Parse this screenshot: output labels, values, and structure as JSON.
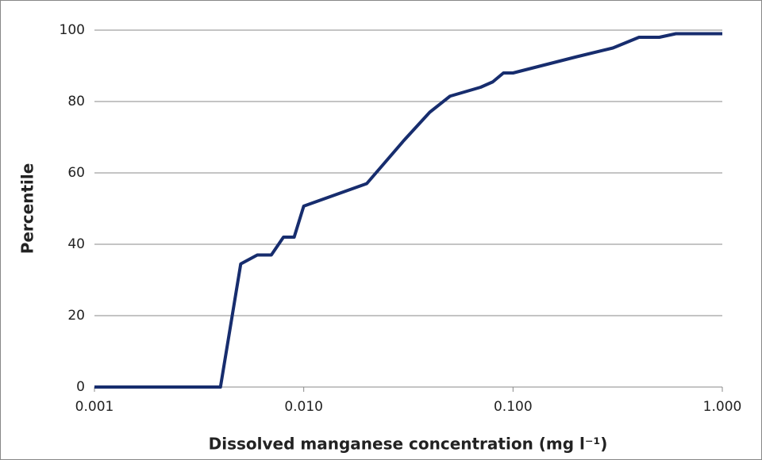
{
  "chart_data": {
    "type": "line",
    "xlabel": "Dissolved manganese concentration (mg l⁻¹)",
    "ylabel": "Percentile",
    "x": [
      0.001,
      0.004,
      0.005,
      0.006,
      0.007,
      0.008,
      0.009,
      0.01,
      0.02,
      0.03,
      0.04,
      0.05,
      0.07,
      0.08,
      0.09,
      0.1,
      0.2,
      0.3,
      0.4,
      0.5,
      0.6,
      1
    ],
    "series": [
      {
        "name": "Percentile",
        "color": "#172d6e",
        "values": [
          0,
          0,
          34.5,
          37,
          37,
          42,
          42,
          50.7,
          57,
          69,
          77,
          81.5,
          84,
          85.5,
          88,
          88,
          92.5,
          95,
          98,
          98,
          99,
          99
        ]
      }
    ],
    "xscale": "log",
    "xlim": [
      0.001,
      1
    ],
    "xticks": [
      0.001,
      {
        "value": 0.01,
        "label": "0.010"
      },
      {
        "value": 0.1,
        "label": "0.100"
      },
      {
        "value": 1,
        "label": "1.000"
      }
    ],
    "ylim": [
      0,
      100
    ],
    "yticks": [
      0,
      20,
      40,
      60,
      80,
      100
    ],
    "grid": true
  }
}
